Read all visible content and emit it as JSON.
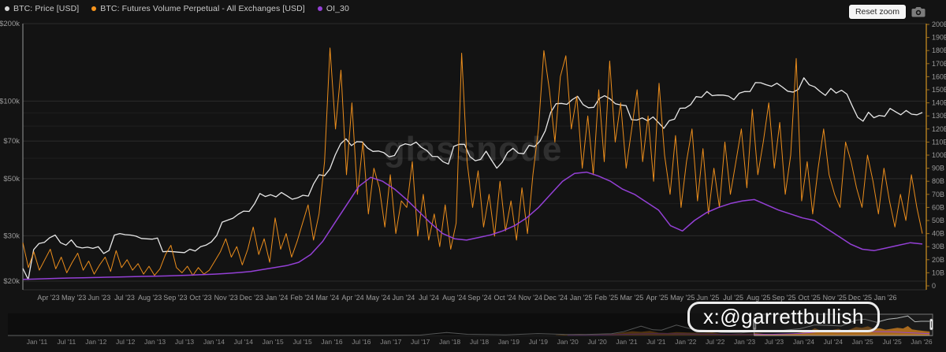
{
  "legend": {
    "items": [
      {
        "label": "BTC: Price [USD]",
        "color": "#d9d9d9"
      },
      {
        "label": "BTC: Futures Volume Perpetual - All Exchanges [USD]",
        "color": "#f7941c"
      },
      {
        "label": "OI_30",
        "color": "#9440d6"
      }
    ]
  },
  "controls": {
    "reset_zoom_label": "Reset zoom",
    "camera_icon": "camera-icon"
  },
  "watermark": {
    "text": "glassnode"
  },
  "badge": {
    "text": "x:@garrettbullish"
  },
  "chart_data": [
    {
      "id": "main",
      "type": "line",
      "x_range": [
        "Mar 2023",
        "Feb 2026"
      ],
      "x_tick_labels": [
        "Apr '23",
        "May '23",
        "Jun '23",
        "Jul '23",
        "Aug '23",
        "Sep '23",
        "Oct '23",
        "Nov '23",
        "Dec '23",
        "Jan '24",
        "Feb '24",
        "Mar '24",
        "Apr '24",
        "May '24",
        "Jun '24",
        "Jul '24",
        "Aug '24",
        "Sep '24",
        "Oct '24",
        "Nov '24",
        "Dec '24",
        "Jan '25",
        "Feb '25",
        "Mar '25",
        "Apr '25",
        "May '25",
        "Jun '25",
        "Jul '25",
        "Aug '25",
        "Sep '25",
        "Oct '25",
        "Nov '25",
        "Dec '25",
        "Jan '26"
      ],
      "y_left": {
        "type": "log",
        "unit": "USD",
        "range": [
          20000,
          200000
        ],
        "ticks": [
          {
            "value": 200000,
            "label": "$200k"
          },
          {
            "value": 100000,
            "label": "$100k"
          },
          {
            "value": 70000,
            "label": "$70k"
          },
          {
            "value": 50000,
            "label": "$50k"
          },
          {
            "value": 30000,
            "label": "$30k"
          },
          {
            "value": 20000,
            "label": "$20k"
          }
        ],
        "grid_values": [
          90000,
          80000,
          60000,
          40000
        ]
      },
      "y_right": {
        "type": "linear",
        "unit": "USD billions",
        "range_billions": [
          0,
          200
        ],
        "tick_labels": [
          "0",
          "10B",
          "20B",
          "30B",
          "40B",
          "50B",
          "60B",
          "70B",
          "80B",
          "90B",
          "100B",
          "110B",
          "120B",
          "130B",
          "140B",
          "150B",
          "160B",
          "170B",
          "180B",
          "190B",
          "200B"
        ]
      },
      "series": [
        {
          "name": "BTC: Price [USD]",
          "axis": "left",
          "color": "#e8e8e8",
          "unit": "USD thousands",
          "values": [
            22.4,
            20.3,
            26.5,
            28.0,
            28.3,
            29.5,
            30.2,
            28.2,
            27.6,
            28.9,
            27.2,
            26.9,
            27.1,
            26.8,
            27.2,
            25.6,
            26.3,
            30.2,
            30.6,
            30.3,
            30.2,
            29.9,
            29.3,
            29.2,
            29.1,
            29.4,
            26.0,
            26.1,
            26.0,
            25.9,
            25.8,
            26.6,
            26.2,
            27.2,
            27.6,
            28.4,
            30.1,
            33.9,
            34.5,
            35.1,
            36.4,
            37.4,
            37.3,
            39.9,
            43.8,
            42.6,
            43.3,
            42.5,
            44.2,
            42.9,
            41.6,
            42.1,
            43.1,
            42.8,
            47.8,
            51.8,
            51.3,
            54.5,
            61.9,
            68.3,
            71.4,
            67.2,
            69.6,
            69.4,
            65.7,
            63.8,
            64.0,
            63.1,
            60.8,
            61.5,
            66.9,
            68.3,
            67.5,
            69.3,
            66.1,
            64.3,
            61.0,
            60.9,
            58.2,
            57.0,
            66.7,
            68.0,
            67.9,
            60.9,
            58.7,
            59.4,
            63.9,
            59.1,
            54.9,
            57.9,
            63.2,
            65.6,
            62.8,
            62.5,
            67.4,
            66.6,
            69.9,
            76.7,
            90.5,
            97.7,
            98.0,
            97.2,
            101.4,
            104.4,
            97.0,
            94.3,
            94.6,
            102.3,
            104.9,
            102.1,
            97.7,
            96.6,
            96.1,
            84.7,
            84.4,
            86.1,
            83.9,
            86.8,
            82.6,
            78.4,
            84.0,
            85.2,
            93.8,
            94.0,
            97.0,
            104.1,
            103.5,
            109.0,
            105.0,
            105.6,
            105.5,
            104.6,
            101.3,
            107.3,
            108.9,
            109.0,
            118.0,
            117.9,
            115.8,
            114.2,
            117.4,
            113.5,
            109.3,
            108.4,
            111.2,
            123.2,
            115.7,
            113.6,
            109.1,
            105.3,
            112.0,
            107.5,
            110.2,
            106.5,
            95.6,
            86.5,
            83.6,
            90.5,
            86.2,
            88.0,
            87.3,
            93.7,
            91.0,
            88.5,
            92.0,
            89.0,
            88.5,
            90.3
          ]
        },
        {
          "name": "BTC: Futures Volume Perpetual - All Exchanges [USD]",
          "axis": "right",
          "color": "#f7941c",
          "unit": "USD billions",
          "values": [
            33,
            14,
            26,
            12,
            20,
            28,
            13,
            22,
            10,
            18,
            25,
            12,
            19,
            9,
            16,
            22,
            11,
            27,
            14,
            20,
            12,
            17,
            9,
            15,
            8,
            13,
            24,
            31,
            14,
            10,
            15,
            8,
            14,
            9,
            12,
            19,
            26,
            36,
            22,
            30,
            16,
            28,
            45,
            24,
            36,
            18,
            52,
            28,
            40,
            22,
            34,
            48,
            62,
            35,
            55,
            95,
            182,
            120,
            165,
            85,
            140,
            70,
            110,
            55,
            90,
            75,
            45,
            85,
            40,
            65,
            60,
            95,
            38,
            70,
            35,
            55,
            30,
            62,
            28,
            48,
            178,
            95,
            60,
            88,
            45,
            70,
            38,
            80,
            42,
            65,
            35,
            75,
            40,
            85,
            120,
            180,
            150,
            110,
            160,
            176,
            120,
            145,
            90,
            130,
            85,
            150,
            95,
            172,
            110,
            140,
            90,
            120,
            150,
            95,
            130,
            80,
            155,
            100,
            70,
            115,
            60,
            95,
            120,
            65,
            105,
            55,
            90,
            60,
            110,
            70,
            95,
            120,
            75,
            135,
            85,
            110,
            140,
            90,
            125,
            70,
            100,
            174,
            65,
            95,
            55,
            90,
            120,
            85,
            70,
            60,
            110,
            95,
            75,
            60,
            100,
            80,
            55,
            90,
            65,
            45,
            70,
            50,
            85,
            60,
            40
          ]
        },
        {
          "name": "OI_30",
          "axis": "right",
          "color": "#9440d6",
          "unit": "USD billions",
          "values": [
            5,
            5.2,
            5.5,
            5.8,
            6,
            6.2,
            6.4,
            6.6,
            6.8,
            7,
            7.2,
            7.4,
            7.6,
            7.9,
            8.2,
            8.6,
            9,
            9.5,
            10.2,
            11,
            12.5,
            14,
            15.5,
            18,
            24,
            34,
            48,
            62,
            76,
            83,
            80,
            74,
            66,
            57,
            48,
            40,
            36,
            35,
            37,
            39,
            42,
            46,
            52,
            60,
            70,
            80,
            86,
            87,
            84,
            80,
            74,
            70,
            64,
            58,
            46,
            42,
            50,
            56,
            60,
            63,
            65,
            66,
            62,
            58,
            55,
            52,
            50,
            44,
            38,
            32,
            28,
            27,
            29,
            31,
            33,
            32
          ]
        }
      ]
    },
    {
      "id": "navigator",
      "type": "line",
      "time_domain": [
        2010.5,
        2026.2
      ],
      "x_tick_labels": [
        "Jan '11",
        "Jul '11",
        "Jan '12",
        "Jul '12",
        "Jan '13",
        "Jul '13",
        "Jan '14",
        "Jul '14",
        "Jan '15",
        "Jul '15",
        "Jan '16",
        "Jul '16",
        "Jan '17",
        "Jul '17",
        "Jan '18",
        "Jul '18",
        "Jan '19",
        "Jul '19",
        "Jan '20",
        "Jul '20",
        "Jan '21",
        "Jul '21",
        "Jan '22",
        "Jul '22",
        "Jan '23",
        "Jul '23",
        "Jan '24",
        "Jul '24",
        "Jan '25",
        "Jul '25",
        "Jan '26"
      ],
      "selection": {
        "from": 2023.17,
        "to": 2026.2
      },
      "series": [
        {
          "name": "price",
          "color": "#c2c6c6",
          "unit": "USD thousands",
          "points": [
            [
              2010.5,
              0.01
            ],
            [
              2011.5,
              0.01
            ],
            [
              2012.5,
              0.01
            ],
            [
              2013.3,
              0.6
            ],
            [
              2013.95,
              1.1
            ],
            [
              2014.5,
              0.6
            ],
            [
              2015.1,
              0.25
            ],
            [
              2016.0,
              0.45
            ],
            [
              2016.9,
              0.9
            ],
            [
              2017.5,
              2.5
            ],
            [
              2017.95,
              19
            ],
            [
              2018.3,
              7.5
            ],
            [
              2018.95,
              3.8
            ],
            [
              2019.5,
              12
            ],
            [
              2019.95,
              7.2
            ],
            [
              2020.3,
              6.5
            ],
            [
              2020.75,
              11
            ],
            [
              2020.95,
              24
            ],
            [
              2021.25,
              59
            ],
            [
              2021.45,
              36
            ],
            [
              2021.6,
              34
            ],
            [
              2021.85,
              66
            ],
            [
              2022.1,
              42
            ],
            [
              2022.45,
              30
            ],
            [
              2022.6,
              19
            ],
            [
              2022.95,
              16.6
            ],
            [
              2023.2,
              25
            ],
            [
              2023.6,
              30
            ],
            [
              2023.95,
              43
            ],
            [
              2024.2,
              67
            ],
            [
              2024.45,
              64
            ],
            [
              2024.65,
              60
            ],
            [
              2024.9,
              97
            ],
            [
              2025.05,
              103
            ],
            [
              2025.25,
              84
            ],
            [
              2025.45,
              104
            ],
            [
              2025.6,
              110
            ],
            [
              2025.78,
              124
            ],
            [
              2025.9,
              87
            ],
            [
              2026.0,
              90
            ],
            [
              2026.15,
              90
            ]
          ]
        },
        {
          "name": "volume",
          "color": "#f7941c",
          "unit": "USD billions",
          "points": [
            [
              2019.8,
              1
            ],
            [
              2020.0,
              3
            ],
            [
              2020.2,
              5
            ],
            [
              2020.4,
              3
            ],
            [
              2020.6,
              4
            ],
            [
              2020.8,
              6
            ],
            [
              2020.95,
              10
            ],
            [
              2021.1,
              14
            ],
            [
              2021.25,
              12
            ],
            [
              2021.4,
              15
            ],
            [
              2021.55,
              9
            ],
            [
              2021.7,
              8
            ],
            [
              2021.85,
              11
            ],
            [
              2022.0,
              10
            ],
            [
              2022.15,
              9
            ],
            [
              2022.3,
              8
            ],
            [
              2022.45,
              10
            ],
            [
              2022.6,
              6
            ],
            [
              2022.75,
              5
            ],
            [
              2022.9,
              6
            ],
            [
              2023.05,
              6
            ],
            [
              2023.2,
              7
            ],
            [
              2023.35,
              5
            ],
            [
              2023.5,
              5
            ],
            [
              2023.65,
              5
            ],
            [
              2023.8,
              6
            ],
            [
              2023.95,
              9
            ],
            [
              2024.1,
              13
            ],
            [
              2024.2,
              24
            ],
            [
              2024.3,
              16
            ],
            [
              2024.4,
              14
            ],
            [
              2024.5,
              18
            ],
            [
              2024.6,
              22
            ],
            [
              2024.7,
              15
            ],
            [
              2024.8,
              20
            ],
            [
              2024.9,
              28
            ],
            [
              2025.0,
              25
            ],
            [
              2025.1,
              30
            ],
            [
              2025.2,
              22
            ],
            [
              2025.3,
              24
            ],
            [
              2025.4,
              19
            ],
            [
              2025.5,
              22
            ],
            [
              2025.6,
              25
            ],
            [
              2025.7,
              23
            ],
            [
              2025.78,
              31
            ],
            [
              2025.85,
              20
            ],
            [
              2025.95,
              17
            ],
            [
              2026.05,
              15
            ],
            [
              2026.15,
              13
            ]
          ]
        },
        {
          "name": "oi",
          "color": "#9440d6",
          "unit": "USD billions",
          "points": [
            [
              2020.0,
              0.5
            ],
            [
              2020.5,
              1
            ],
            [
              2021.0,
              4
            ],
            [
              2021.5,
              6
            ],
            [
              2022.0,
              5
            ],
            [
              2022.5,
              4
            ],
            [
              2023.0,
              3
            ],
            [
              2023.5,
              4
            ],
            [
              2024.0,
              7
            ],
            [
              2024.3,
              13
            ],
            [
              2024.6,
              11
            ],
            [
              2024.95,
              17
            ],
            [
              2025.2,
              13
            ],
            [
              2025.5,
              12
            ],
            [
              2025.8,
              9
            ],
            [
              2026.15,
              6
            ]
          ]
        }
      ]
    }
  ]
}
